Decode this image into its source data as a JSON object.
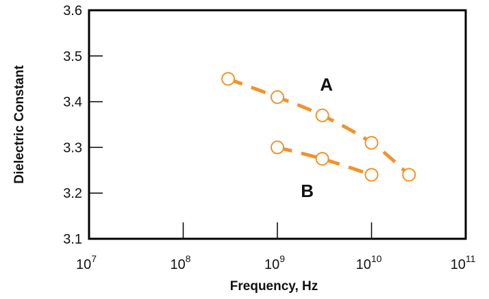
{
  "chart_data": {
    "type": "line",
    "title": "",
    "xlabel": "Frequency, Hz",
    "ylabel": "Dielectric Constant",
    "x_scale": "log",
    "xlim": [
      10000000,
      100000000000
    ],
    "ylim": [
      3.1,
      3.6
    ],
    "x_ticks": [
      {
        "base": "10",
        "exp": "7",
        "value": 10000000
      },
      {
        "base": "10",
        "exp": "8",
        "value": 100000000
      },
      {
        "base": "10",
        "exp": "9",
        "value": 1000000000
      },
      {
        "base": "10",
        "exp": "10",
        "value": 10000000000
      },
      {
        "base": "10",
        "exp": "11",
        "value": 100000000000
      }
    ],
    "y_ticks": [
      "3.1",
      "3.2",
      "3.3",
      "3.4",
      "3.5",
      "3.6"
    ],
    "grid": false,
    "line_color": "#F0932B",
    "marker": "open-circle",
    "line_style": "dashed",
    "series": [
      {
        "name": "A",
        "x": [
          300000000,
          1000000000,
          3000000000,
          10000000000,
          25000000000
        ],
        "y": [
          3.45,
          3.41,
          3.37,
          3.31,
          3.24
        ]
      },
      {
        "name": "B",
        "x": [
          1000000000,
          3000000000,
          10000000000
        ],
        "y": [
          3.3,
          3.275,
          3.24
        ]
      }
    ]
  }
}
